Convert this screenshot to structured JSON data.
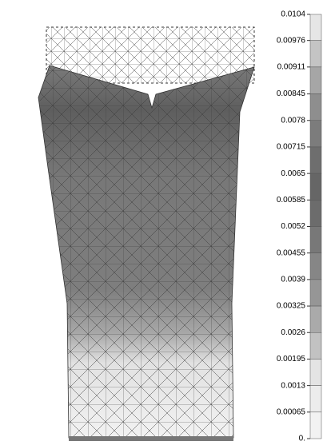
{
  "chart_data": {
    "type": "contour",
    "colorbar": {
      "lim": [
        0,
        0.0104
      ],
      "ticks": [
        0.0104,
        0.00976,
        0.00911,
        0.00845,
        0.0078,
        0.00715,
        0.0065,
        0.00585,
        0.0052,
        0.00455,
        0.0039,
        0.00325,
        0.0026,
        0.00195,
        0.0013,
        0.00065,
        {
          "value": 0,
          "label": "0."
        }
      ],
      "colors": [
        "#e6e6e6",
        "#c4c4c4",
        "#a6a6a6",
        "#8e8e8e",
        "#7c7c7c",
        "#6e6e6e",
        "#666666",
        "#6c6c6c",
        "#787878",
        "#868686",
        "#969696",
        "#aaaaaa",
        "#c2c2c2",
        "#e4e4e4",
        "#ececec",
        "#f2f2f2"
      ]
    }
  }
}
